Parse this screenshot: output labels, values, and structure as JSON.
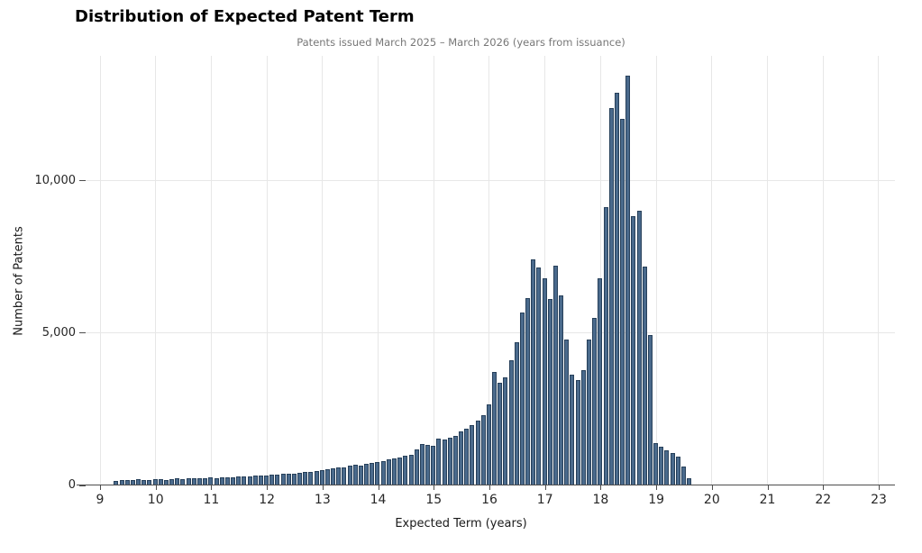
{
  "chart_data": {
    "type": "bar",
    "subtype": "histogram",
    "title": "Distribution of Expected Patent Term",
    "subtitle": "Patents issued March 2025 – March 2026 (years from issuance)",
    "xlabel": "Expected Term (years)",
    "ylabel": "Number of Patents",
    "bin_start": 9.25,
    "bin_width": 0.1,
    "values": [
      155,
      190,
      165,
      185,
      200,
      170,
      185,
      205,
      215,
      185,
      200,
      225,
      210,
      235,
      225,
      245,
      230,
      255,
      225,
      265,
      275,
      255,
      285,
      305,
      295,
      315,
      335,
      325,
      355,
      345,
      375,
      395,
      385,
      425,
      455,
      445,
      475,
      505,
      545,
      565,
      605,
      590,
      645,
      685,
      665,
      705,
      735,
      765,
      805,
      845,
      885,
      925,
      965,
      1020,
      1180,
      1350,
      1320,
      1290,
      1530,
      1500,
      1560,
      1620,
      1770,
      1850,
      1970,
      2120,
      2320,
      2650,
      3730,
      3380,
      3560,
      4120,
      4700,
      5690,
      6150,
      7420,
      7170,
      6800,
      6110,
      7225,
      6240,
      4790,
      3650,
      3450,
      3800,
      4800,
      5490,
      6800,
      9145,
      12400,
      12900,
      12050,
      13460,
      8850,
      9030,
      7200,
      4930,
      1400,
      1270,
      1150,
      1075,
      950,
      630,
      250
    ],
    "x_ticks": [
      9,
      10,
      11,
      12,
      13,
      14,
      15,
      16,
      17,
      18,
      19,
      20,
      21,
      22,
      23
    ],
    "y_ticks": [
      {
        "value": 0,
        "label": "0"
      },
      {
        "value": 5000,
        "label": "5,000"
      },
      {
        "value": 10000,
        "label": "10,000"
      }
    ],
    "xlim": [
      8.74,
      23.29
    ],
    "ylim": [
      0,
      14112
    ],
    "grid": true,
    "legend_position": "none",
    "colors": {
      "bar_fill": "#4a6a8c",
      "bar_edge": "#27405a",
      "gridline": "#e7e7e7",
      "axis_line": "#4d4d4d",
      "title_text": "#000000",
      "subtitle_text": "#777777",
      "tick_text": "#262626",
      "axis_label_text": "#1a1a1a",
      "background": "#ffffff"
    }
  }
}
